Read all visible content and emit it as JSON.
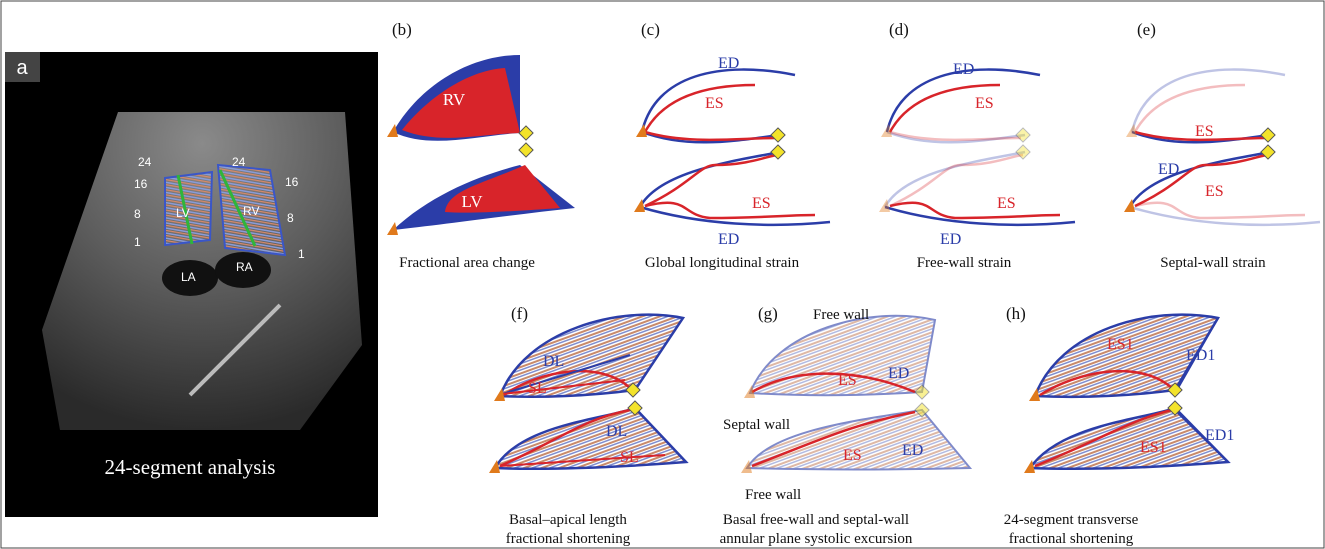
{
  "panel_a": {
    "label": "a",
    "lv_marks": [
      "24",
      "16",
      "8",
      "1"
    ],
    "lv": "LV",
    "rv_marks": [
      "24",
      "16",
      "8",
      "1"
    ],
    "rv": "RV",
    "la": "LA",
    "ra": "RA",
    "caption": "24-segment analysis"
  },
  "panel_b": {
    "label": "(b)",
    "rv": "RV",
    "lv": "LV",
    "caption": "Fractional area change"
  },
  "panel_c": {
    "label": "(c)",
    "upper_ed": "ED",
    "upper_es": "ES",
    "lower_es": "ES",
    "lower_ed": "ED",
    "caption": "Global longitudinal strain"
  },
  "panel_d": {
    "label": "(d)",
    "upper_ed": "ED",
    "upper_es": "ES",
    "lower_es": "ES",
    "lower_ed": "ED",
    "caption": "Free-wall strain"
  },
  "panel_e": {
    "label": "(e)",
    "upper_es": "ES",
    "ed": "ED",
    "lower_es": "ES",
    "caption": "Septal-wall strain"
  },
  "panel_f": {
    "label": "(f)",
    "upper_dl": "DL",
    "upper_sl": "SL",
    "lower_dl": "DL",
    "lower_sl": "SL",
    "caption": [
      "Basal–apical length",
      "fractional shortening"
    ]
  },
  "panel_g": {
    "label": "(g)",
    "free_wall_top": "Free wall",
    "upper_es": "ES",
    "upper_ed": "ED",
    "septal_wall": "Septal wall",
    "lower_es": "ES",
    "lower_ed": "ED",
    "free_wall_bottom": "Free wall",
    "caption": [
      "Basal free-wall and septal-wall",
      "annular plane systolic excursion"
    ]
  },
  "panel_h": {
    "label": "(h)",
    "upper_es1": "ES1",
    "upper_ed1": "ED1",
    "lower_es1": "ES1",
    "lower_ed1": "ED1",
    "caption": [
      "24-segment transverse",
      "fractional shortening"
    ]
  }
}
